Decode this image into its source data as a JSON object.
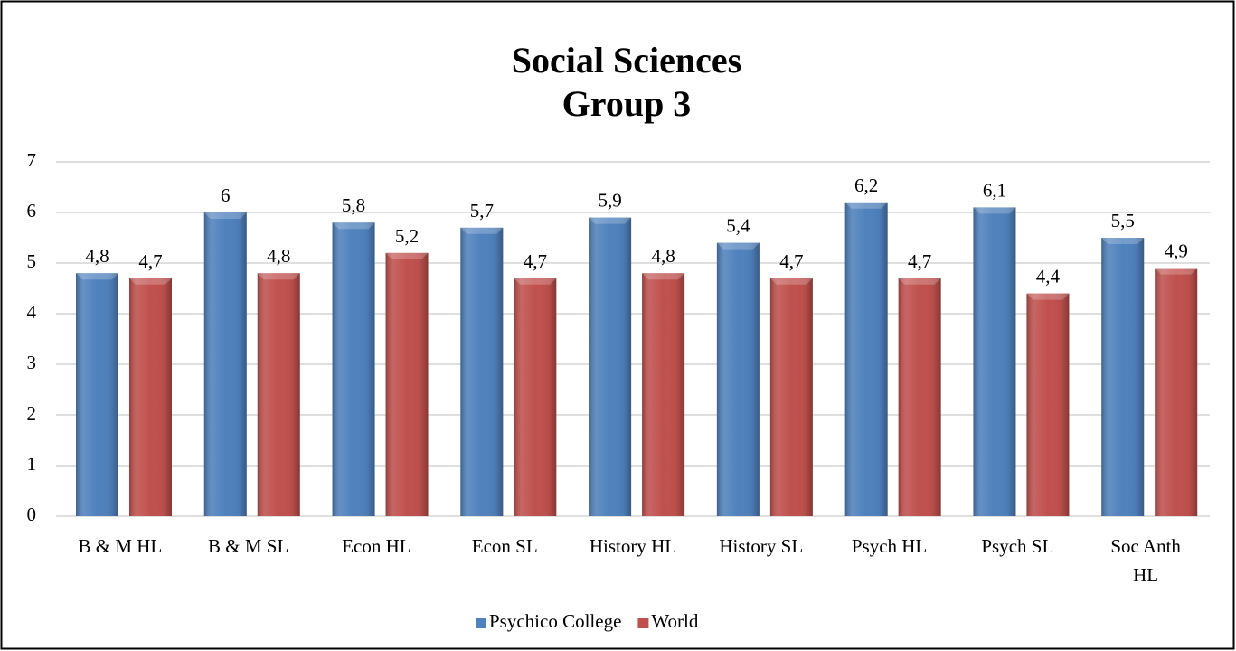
{
  "chart_data": {
    "type": "bar",
    "title": "Social Sciences",
    "subtitle": "Group 3",
    "categories": [
      "B & M HL",
      "B & M SL",
      "Econ HL",
      "Econ SL",
      "History HL",
      "History SL",
      "Psych HL",
      "Psych SL",
      "Soc Anth HL"
    ],
    "series": [
      {
        "name": "Psychico College",
        "color": "#4f81bd",
        "values": [
          4.8,
          6,
          5.8,
          5.7,
          5.9,
          5.4,
          6.2,
          6.1,
          5.5
        ],
        "value_labels": [
          "4,8",
          "6",
          "5,8",
          "5,7",
          "5,9",
          "5,4",
          "6,2",
          "6,1",
          "5,5"
        ]
      },
      {
        "name": "World",
        "color": "#c0504d",
        "values": [
          4.7,
          4.8,
          5.2,
          4.7,
          4.8,
          4.7,
          4.7,
          4.4,
          4.9
        ],
        "value_labels": [
          "4,7",
          "4,8",
          "5,2",
          "4,7",
          "4,8",
          "4,7",
          "4,7",
          "4,4",
          "4,9"
        ]
      }
    ],
    "ylim": [
      0,
      7
    ],
    "yticks": [
      0,
      1,
      2,
      3,
      4,
      5,
      6,
      7
    ],
    "grid": true,
    "legend": "bottom"
  }
}
